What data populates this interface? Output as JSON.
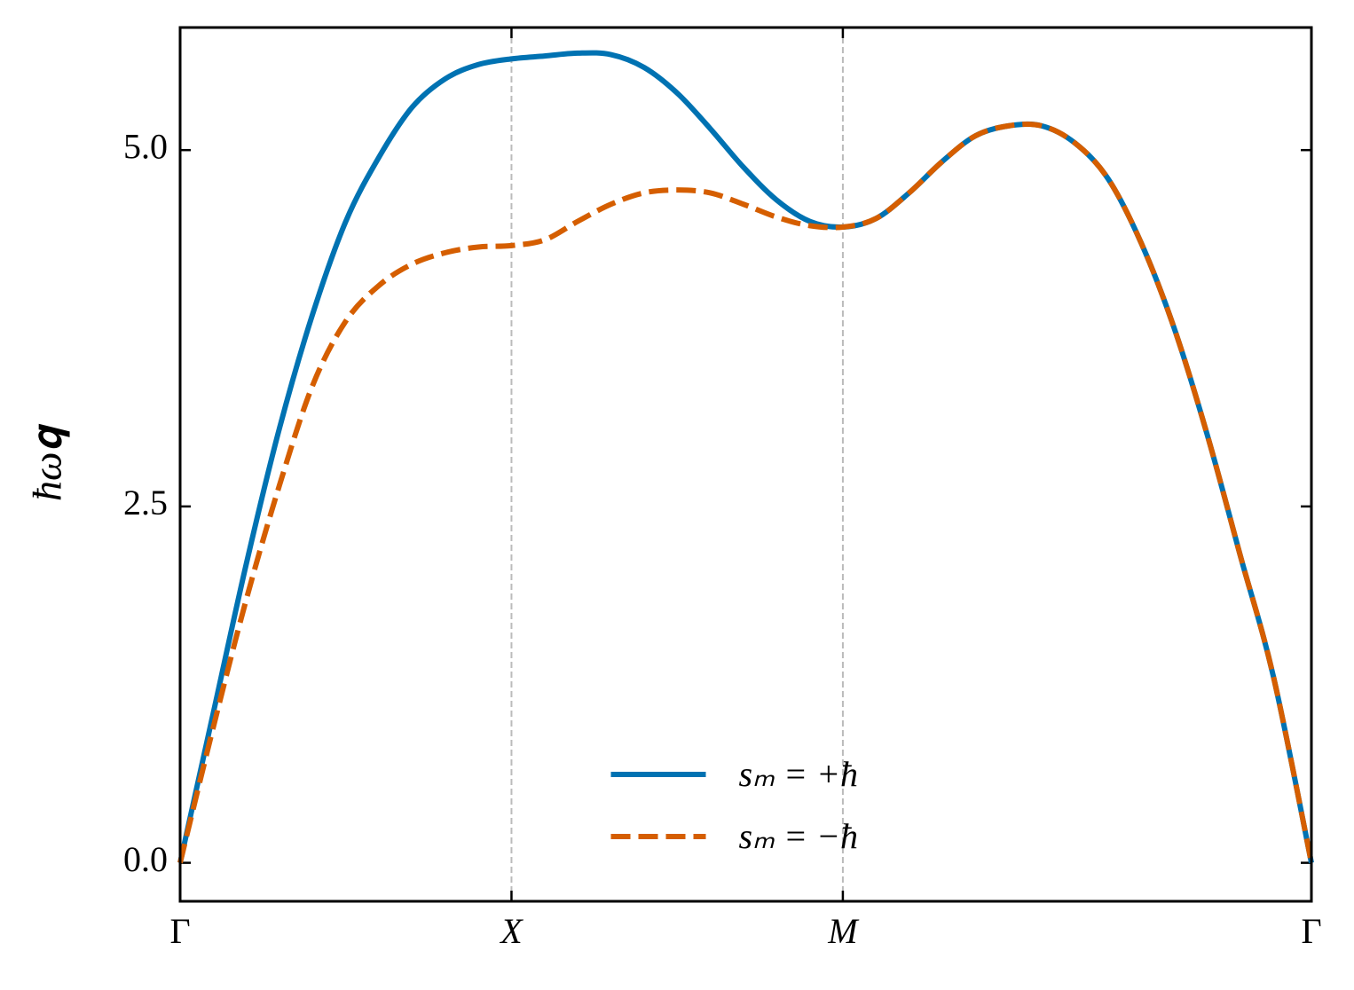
{
  "chart_data": {
    "type": "line",
    "ylabel": "ħω𝐪",
    "x": [
      0,
      0.1,
      0.2,
      0.3,
      0.4,
      0.5,
      0.6,
      0.7,
      0.8,
      0.9,
      1.0,
      1.1,
      1.2,
      1.3,
      1.4,
      1.5,
      1.6,
      1.7,
      1.8,
      1.9,
      2.0,
      2.1,
      2.2,
      2.3,
      2.4,
      2.5,
      2.6,
      2.7,
      2.8,
      2.9,
      3.0,
      3.1,
      3.2,
      3.3,
      3.414
    ],
    "series": [
      {
        "name": "sₘ = +ħ",
        "color": "#0072b2",
        "dash": false,
        "values": [
          0,
          1.05,
          2.1,
          3.05,
          3.85,
          4.5,
          4.95,
          5.3,
          5.5,
          5.6,
          5.64,
          5.66,
          5.68,
          5.67,
          5.58,
          5.4,
          5.15,
          4.88,
          4.65,
          4.5,
          4.46,
          4.52,
          4.7,
          4.92,
          5.1,
          5.17,
          5.17,
          5.05,
          4.8,
          4.35,
          3.75,
          3.0,
          2.15,
          1.3,
          0
        ]
      },
      {
        "name": "sₘ = −ħ",
        "color": "#d55e00",
        "dash": true,
        "values": [
          0,
          0.95,
          1.85,
          2.65,
          3.35,
          3.8,
          4.05,
          4.2,
          4.28,
          4.32,
          4.33,
          4.37,
          4.5,
          4.62,
          4.7,
          4.72,
          4.7,
          4.62,
          4.53,
          4.47,
          4.46,
          4.52,
          4.7,
          4.92,
          5.1,
          5.17,
          5.17,
          5.05,
          4.8,
          4.35,
          3.75,
          3.0,
          2.15,
          1.3,
          0
        ]
      }
    ],
    "xlim": [
      0,
      3.414
    ],
    "xticks": [
      {
        "value": 0,
        "label": "Γ"
      },
      {
        "value": 1,
        "label": "X"
      },
      {
        "value": 2,
        "label": "M"
      },
      {
        "value": 3.414,
        "label": "Γ"
      }
    ],
    "ylim": [
      -0.27,
      5.86
    ],
    "yticks": [
      {
        "value": 0,
        "label": "0.0"
      },
      2.5,
      {
        "value": 5,
        "label": "5.0"
      }
    ],
    "vertical_guides": true,
    "legend": "lower center"
  }
}
